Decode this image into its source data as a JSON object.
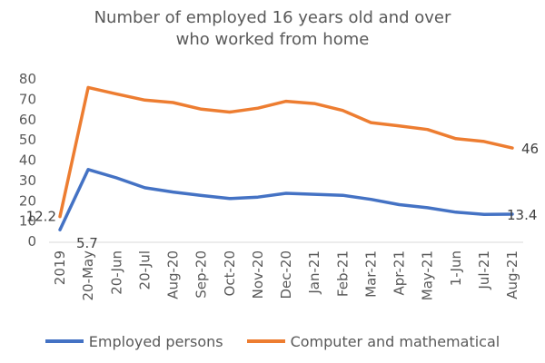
{
  "chart_data": {
    "type": "line",
    "title_lines": [
      "Number of employed 16 years old and over",
      "who worked from home"
    ],
    "xlabel": "",
    "ylabel": "",
    "categories": [
      "2019",
      "20-May",
      "20-Jun",
      "20-Jul",
      "Aug-20",
      "Sep-20",
      "Oct-20",
      "Nov-20",
      "Dec-20",
      "Jan-21",
      "Feb-21",
      "Mar-21",
      "Apr-21",
      "May-21",
      "1-Jun",
      "Jul-21",
      "Aug-21"
    ],
    "yticks": [
      "0",
      "10",
      "20",
      "30",
      "40",
      "50",
      "60",
      "70",
      "80"
    ],
    "ylim": [
      0,
      80
    ],
    "grid": false,
    "legend_position": "bottom",
    "series": [
      {
        "name": "Employed persons",
        "color": "#4472C4",
        "values": [
          5.7,
          35.4,
          31.3,
          26.4,
          24.3,
          22.6,
          21.1,
          21.8,
          23.7,
          23.2,
          22.7,
          20.7,
          18.1,
          16.6,
          14.4,
          13.3,
          13.4
        ]
      },
      {
        "name": "Computer and mathematical",
        "color": "#ED7D31",
        "values": [
          12.2,
          75.8,
          72.6,
          69.6,
          68.4,
          65.1,
          63.7,
          65.6,
          69.0,
          67.9,
          64.5,
          58.5,
          56.9,
          55.1,
          50.6,
          49.2,
          46.0
        ]
      }
    ],
    "data_labels": [
      {
        "series": 1,
        "index": 0,
        "text": "12.2"
      },
      {
        "series": 0,
        "index": 0,
        "text": "5.7"
      },
      {
        "series": 1,
        "index": 16,
        "text": "46"
      },
      {
        "series": 0,
        "index": 16,
        "text": "13.4"
      }
    ]
  }
}
